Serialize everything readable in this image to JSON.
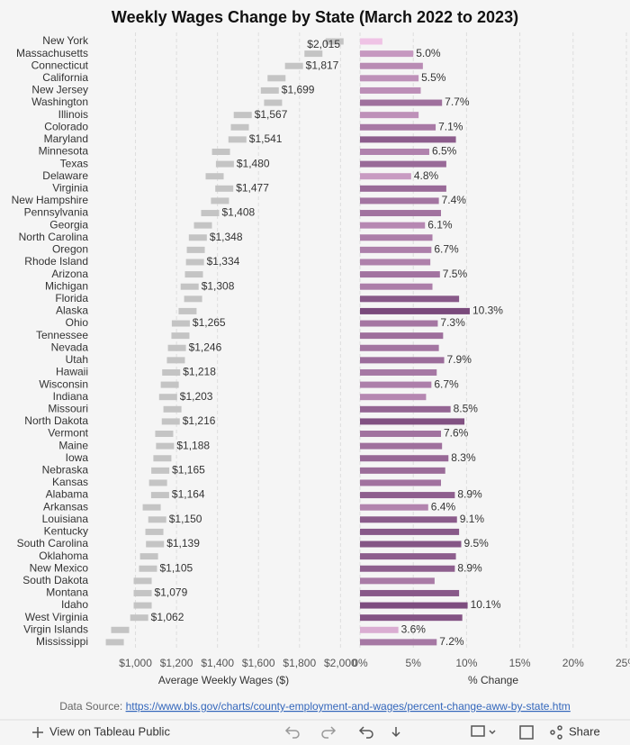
{
  "chart_data": {
    "type": "bar",
    "title": "Weekly Wages Change by State (March 2022 to 2023)",
    "categories": [
      "New York",
      "Massachusetts",
      "Connecticut",
      "California",
      "New Jersey",
      "Washington",
      "Illinois",
      "Colorado",
      "Maryland",
      "Minnesota",
      "Texas",
      "Delaware",
      "Virginia",
      "New Hampshire",
      "Pennsylvania",
      "Georgia",
      "North Carolina",
      "Oregon",
      "Rhode Island",
      "Arizona",
      "Michigan",
      "Florida",
      "Alaska",
      "Ohio",
      "Tennessee",
      "Nevada",
      "Utah",
      "Hawaii",
      "Wisconsin",
      "Indiana",
      "Missouri",
      "North Dakota",
      "Vermont",
      "Maine",
      "Iowa",
      "Nebraska",
      "Kansas",
      "Alabama",
      "Arkansas",
      "Louisiana",
      "Kentucky",
      "South Carolina",
      "Oklahoma",
      "New Mexico",
      "South Dakota",
      "Montana",
      "Idaho",
      "West Virginia",
      "Virgin Islands",
      "Mississippi"
    ],
    "panels": [
      {
        "mark": "gantt",
        "x_label": "Average Weekly Wages ($)",
        "color": "#c4c4c4",
        "xlim": [
          800,
          2060
        ],
        "xticks": [
          {
            "value": 1000,
            "label": "$1,000"
          },
          {
            "value": 1200,
            "label": "$1,200"
          },
          {
            "value": 1400,
            "label": "$1,400"
          },
          {
            "value": 1600,
            "label": "$1,600"
          },
          {
            "value": 1800,
            "label": "$1,800"
          },
          {
            "value": 2000,
            "label": "$2,000"
          }
        ],
        "values": [
          2015,
          1912,
          1817,
          1732,
          1699,
          1715,
          1567,
          1553,
          1541,
          1461,
          1480,
          1430,
          1477,
          1456,
          1408,
          1373,
          1348,
          1338,
          1334,
          1329,
          1308,
          1325,
          1298,
          1265,
          1263,
          1246,
          1241,
          1218,
          1211,
          1203,
          1224,
          1216,
          1184,
          1188,
          1175,
          1165,
          1154,
          1164,
          1123,
          1150,
          1136,
          1139,
          1110,
          1105,
          1079,
          1079,
          1079,
          1062,
          969,
          943
        ],
        "value_labels": [
          "$2,015",
          null,
          "$1,817",
          null,
          "$1,699",
          null,
          "$1,567",
          null,
          "$1,541",
          null,
          "$1,480",
          null,
          "$1,477",
          null,
          "$1,408",
          null,
          "$1,348",
          null,
          "$1,334",
          null,
          "$1,308",
          null,
          null,
          "$1,265",
          null,
          "$1,246",
          null,
          "$1,218",
          null,
          "$1,203",
          null,
          "$1,216",
          null,
          "$1,188",
          null,
          "$1,165",
          null,
          "$1,164",
          null,
          "$1,150",
          null,
          "$1,139",
          null,
          "$1,105",
          null,
          "$1,079",
          null,
          "$1,062",
          null,
          null
        ]
      },
      {
        "mark": "bar",
        "x_label": "% Change",
        "color_range": [
          "#efc3e5",
          "#7a4a7c"
        ],
        "xlim": [
          0,
          25
        ],
        "xticks": [
          {
            "value": 0,
            "label": "0%"
          },
          {
            "value": 5,
            "label": "5%"
          },
          {
            "value": 10,
            "label": "10%"
          },
          {
            "value": 15,
            "label": "15%"
          },
          {
            "value": 20,
            "label": "20%"
          },
          {
            "value": 25,
            "label": "25%"
          }
        ],
        "values": [
          2.1,
          5.0,
          5.9,
          5.5,
          5.7,
          7.7,
          5.5,
          7.1,
          9.0,
          6.5,
          8.1,
          4.8,
          8.1,
          7.4,
          7.6,
          6.1,
          6.8,
          6.7,
          6.6,
          7.5,
          6.8,
          9.3,
          10.3,
          7.3,
          7.8,
          7.4,
          7.9,
          7.2,
          6.7,
          6.2,
          8.5,
          9.8,
          7.6,
          7.7,
          8.3,
          8.0,
          7.6,
          8.9,
          6.4,
          9.1,
          9.3,
          9.5,
          9.0,
          8.9,
          7.0,
          9.3,
          10.1,
          9.6,
          3.6,
          7.2
        ],
        "value_labels": [
          null,
          "5.0%",
          null,
          "5.5%",
          null,
          "7.7%",
          null,
          "7.1%",
          null,
          "6.5%",
          null,
          "4.8%",
          null,
          "7.4%",
          null,
          "6.1%",
          null,
          "6.7%",
          null,
          "7.5%",
          null,
          null,
          "10.3%",
          "7.3%",
          null,
          null,
          "7.9%",
          null,
          "6.7%",
          null,
          "8.5%",
          null,
          "7.6%",
          null,
          "8.3%",
          null,
          null,
          "8.9%",
          "6.4%",
          "9.1%",
          null,
          "9.5%",
          null,
          "8.9%",
          null,
          null,
          "10.1%",
          null,
          "3.6%",
          "7.2%"
        ]
      }
    ],
    "source_prefix": "Data Source: ",
    "source_link": "https://www.bls.gov/charts/county-employment-and-wages/percent-change-aww-by-state.htm"
  },
  "footer": {
    "view": "View on Tableau Public",
    "share": "Share"
  }
}
